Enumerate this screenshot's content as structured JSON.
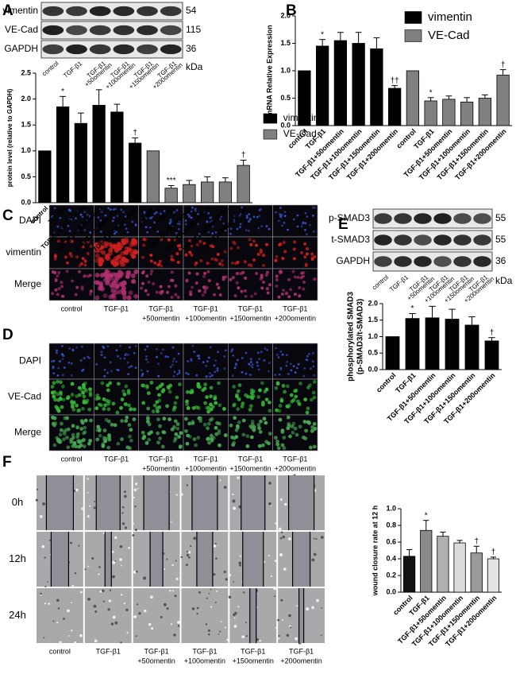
{
  "panel_labels": [
    "A",
    "B",
    "C",
    "D",
    "E",
    "F"
  ],
  "blot_A": {
    "rows": [
      {
        "label": "vimentin",
        "size": 54
      },
      {
        "label": "VE-Cad",
        "size": 115
      },
      {
        "label": "GAPDH",
        "size": 36
      }
    ],
    "unit": "kDa",
    "lanes": [
      [
        "control"
      ],
      [
        "TGF-β1"
      ],
      [
        "TGF-β1",
        "+50omentin"
      ],
      [
        "TGF-β1",
        "+100omentin"
      ],
      [
        "TGF-β1",
        "+150omentin"
      ],
      [
        "TGF-β1",
        "+200omentin"
      ]
    ]
  },
  "blot_E": {
    "rows": [
      {
        "label": "p-SMAD3",
        "size": 55
      },
      {
        "label": "t-SMAD3",
        "size": 55
      },
      {
        "label": "GAPDH",
        "size": 36
      }
    ],
    "unit": "kDa",
    "lanes": [
      [
        "control"
      ],
      [
        "TGF-β1"
      ],
      [
        "TGF-β1",
        "+50omentin"
      ],
      [
        "TGF-β1",
        "+100omentin"
      ],
      [
        "TGF-β1",
        "+150omentin"
      ],
      [
        "TGF-β1",
        "+200omentin"
      ]
    ]
  },
  "microscopy_C": {
    "rows": [
      "DAPI",
      "vimentin",
      "Merge"
    ],
    "columns": [
      [
        "control"
      ],
      [
        "TGF-β1"
      ],
      [
        "TGF-β1",
        "+50omentin"
      ],
      [
        "TGF-β1",
        "+100omentin"
      ],
      [
        "TGF-β1",
        "+150omentin"
      ],
      [
        "TGF-β1",
        "+200omentin"
      ]
    ]
  },
  "microscopy_D": {
    "rows": [
      "DAPI",
      "VE-Cad",
      "Merge"
    ],
    "columns": [
      [
        "control"
      ],
      [
        "TGF-β1"
      ],
      [
        "TGF-β1",
        "+50omentin"
      ],
      [
        "TGF-β1",
        "+100omentin"
      ],
      [
        "TGF-β1",
        "+150omentin"
      ],
      [
        "TGF-β1",
        "+200omentin"
      ]
    ]
  },
  "scratch_F": {
    "rows": [
      "0h",
      "12h",
      "24h"
    ],
    "columns": [
      [
        "control"
      ],
      [
        "TGF-β1"
      ],
      [
        "TGF-β1",
        "+50omentin"
      ],
      [
        "TGF-β1",
        "+100omentin"
      ],
      [
        "TGF-β1",
        "+150omentin"
      ],
      [
        "TGF-β1",
        "+200omentin"
      ]
    ]
  },
  "chart_data": [
    {
      "type": "bar",
      "y_label": "protein level (relative to GAPDH)",
      "categories": [
        "control",
        "TGF-β1",
        "TGF-β1+50omentin",
        "TGF-β1+100omentin",
        "TGF-β1+150omentin",
        "TGF-β1+200omentin",
        "control",
        "TGF-β1",
        "TGF-β1+50omentin",
        "TGF-β1+100omentin",
        "TGF-β1+150omentin",
        "TGF-β1+200omentin"
      ],
      "series": [
        {
          "name": "vimentin",
          "color": "#000000",
          "values": [
            1,
            1.85,
            1.53,
            1.88,
            1.75,
            1.15,
            null,
            null,
            null,
            null,
            null,
            null
          ],
          "errors": [
            null,
            0.2,
            0.2,
            0.3,
            0.15,
            0.1,
            null,
            null,
            null,
            null,
            null,
            null
          ],
          "significance": [
            null,
            "*",
            null,
            null,
            null,
            "†",
            null,
            null,
            null,
            null,
            null,
            null
          ]
        },
        {
          "name": "VE-Cad",
          "color": "#808080",
          "values": [
            null,
            null,
            null,
            null,
            null,
            null,
            1,
            0.28,
            0.35,
            0.4,
            0.4,
            0.72
          ],
          "errors": [
            null,
            null,
            null,
            null,
            null,
            null,
            null,
            0.05,
            0.08,
            0.1,
            0.08,
            0.1
          ],
          "significance": [
            null,
            null,
            null,
            null,
            null,
            null,
            null,
            "***",
            null,
            null,
            null,
            "†"
          ]
        }
      ],
      "ylim": [
        0,
        2.5
      ],
      "yticks": [
        {
          "value": 0,
          "label": "0.0"
        },
        0.5,
        {
          "value": 1,
          "label": "1.0"
        },
        1.5,
        {
          "value": 2,
          "label": "2.0"
        },
        2.5
      ],
      "legend": "right"
    },
    {
      "type": "bar",
      "y_label": "mRNA Relative Expression",
      "categories": [
        "control",
        "TGF-β1",
        "TGF-β1+50omentin",
        "TGF-β1+100omentin",
        "TGF-β1+150omentin",
        "TGF-β1+200omentin",
        "control",
        "TGF-β1",
        "TGF-β1+50omentin",
        "TGF-β1+100omentin",
        "TGF-β1+150omentin",
        "TGF-β1+200omentin"
      ],
      "series": [
        {
          "name": "vimentin",
          "color": "#000000",
          "values": [
            1,
            1.45,
            1.55,
            1.5,
            1.4,
            0.68,
            null,
            null,
            null,
            null,
            null,
            null
          ],
          "errors": [
            null,
            0.12,
            0.15,
            0.2,
            0.2,
            0.05,
            null,
            null,
            null,
            null,
            null,
            null
          ],
          "significance": [
            null,
            "*",
            null,
            null,
            null,
            "††",
            null,
            null,
            null,
            null,
            null,
            null
          ]
        },
        {
          "name": "VE-Cad",
          "color": "#808080",
          "values": [
            null,
            null,
            null,
            null,
            null,
            null,
            1,
            0.45,
            0.48,
            0.43,
            0.5,
            0.92
          ],
          "errors": [
            null,
            null,
            null,
            null,
            null,
            null,
            null,
            0.06,
            0.06,
            0.08,
            0.06,
            0.1
          ],
          "significance": [
            null,
            null,
            null,
            null,
            null,
            null,
            null,
            "*",
            null,
            null,
            null,
            "†"
          ]
        }
      ],
      "ylim": [
        0,
        2
      ],
      "yticks": [
        {
          "value": 0,
          "label": "0.0"
        },
        0.5,
        {
          "value": 1,
          "label": "1.0"
        },
        1.5,
        {
          "value": 2,
          "label": "2.0"
        }
      ],
      "legend": "upper right"
    },
    {
      "type": "bar",
      "y_label": [
        "phosphorylated SMAD3",
        "(p-SMAD3/t-SMAD3)"
      ],
      "categories": [
        "control",
        "TGF-β1",
        "TGF-β1+50omentin",
        "TGF-β1+100omentin",
        "TGF-β1+150omentin",
        "TGF-β1+200omentin"
      ],
      "values": [
        1,
        1.55,
        1.57,
        1.53,
        1.35,
        0.87
      ],
      "errors": [
        null,
        0.15,
        0.35,
        0.3,
        0.25,
        0.1
      ],
      "significance": [
        null,
        "*",
        null,
        null,
        null,
        "†"
      ],
      "color": "#000000",
      "ylim": [
        0,
        2
      ],
      "yticks": [
        {
          "value": 0,
          "label": "0.0"
        },
        0.5,
        {
          "value": 1,
          "label": "1.0"
        },
        1.5,
        {
          "value": 2,
          "label": "2.0"
        }
      ]
    },
    {
      "type": "bar",
      "y_label": "wound closure rate at 12 h",
      "categories": [
        "control",
        "TGF-β1",
        "TGF-β1+50omentin",
        "TGF-β1+100omentin",
        "TGF-β1+150omentin",
        "TGF-β1+200omentin"
      ],
      "values": [
        0.43,
        0.74,
        0.67,
        0.59,
        0.47,
        0.4
      ],
      "errors": [
        0.08,
        0.12,
        0.05,
        0.03,
        0.08,
        0.02
      ],
      "significance": [
        null,
        "*",
        null,
        null,
        "†",
        "†"
      ],
      "colors": [
        "#111111",
        "#8a8a8a",
        "#b0b0b0",
        "#dcdcdc",
        "#9a9a9a",
        "#e4e4e4"
      ],
      "ylim": [
        0,
        1
      ],
      "yticks": [
        {
          "value": 0,
          "label": "0.0"
        },
        0.2,
        0.4,
        0.6,
        0.8,
        {
          "value": 1,
          "label": "1.0"
        }
      ]
    }
  ]
}
